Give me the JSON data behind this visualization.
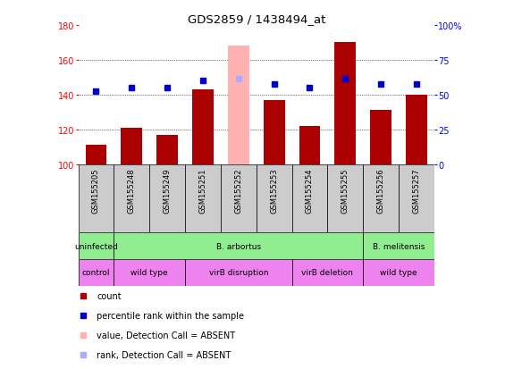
{
  "title": "GDS2859 / 1438494_at",
  "samples": [
    "GSM155205",
    "GSM155248",
    "GSM155249",
    "GSM155251",
    "GSM155252",
    "GSM155253",
    "GSM155254",
    "GSM155255",
    "GSM155256",
    "GSM155257"
  ],
  "count_values": [
    111,
    121,
    117,
    143,
    168,
    137,
    122,
    170,
    131,
    140
  ],
  "percentile_values": [
    142,
    144,
    144,
    148,
    149,
    146,
    144,
    149,
    146,
    146
  ],
  "absent_bar_index": 4,
  "ylim_left": [
    100,
    180
  ],
  "ylim_right": [
    0,
    100
  ],
  "yticks_left": [
    100,
    120,
    140,
    160,
    180
  ],
  "yticks_right": [
    0,
    25,
    50,
    75,
    100
  ],
  "ytick_labels_right": [
    "0",
    "25",
    "50",
    "75",
    "100%"
  ],
  "bar_color": "#aa0000",
  "absent_bar_color": "#ffb0b0",
  "percentile_color": "#0000cc",
  "absent_rank_color": "#aaaaff",
  "sample_box_color": "#cccccc",
  "inf_groups": [
    {
      "label": "uninfected",
      "start": 0,
      "end": 1,
      "color": "#90ee90"
    },
    {
      "label": "B. arbortus",
      "start": 1,
      "end": 8,
      "color": "#90ee90"
    },
    {
      "label": "B. melitensis",
      "start": 8,
      "end": 10,
      "color": "#90ee90"
    }
  ],
  "gen_groups": [
    {
      "label": "control",
      "start": 0,
      "end": 1,
      "color": "#ee82ee"
    },
    {
      "label": "wild type",
      "start": 1,
      "end": 3,
      "color": "#ee82ee"
    },
    {
      "label": "virB disruption",
      "start": 3,
      "end": 6,
      "color": "#ee82ee"
    },
    {
      "label": "virB deletion",
      "start": 6,
      "end": 8,
      "color": "#ee82ee"
    },
    {
      "label": "wild type",
      "start": 8,
      "end": 10,
      "color": "#ee82ee"
    }
  ],
  "legend_items": [
    {
      "label": "count",
      "color": "#aa0000"
    },
    {
      "label": "percentile rank within the sample",
      "color": "#0000cc"
    },
    {
      "label": "value, Detection Call = ABSENT",
      "color": "#ffb0b0"
    },
    {
      "label": "rank, Detection Call = ABSENT",
      "color": "#aaaaff"
    }
  ]
}
